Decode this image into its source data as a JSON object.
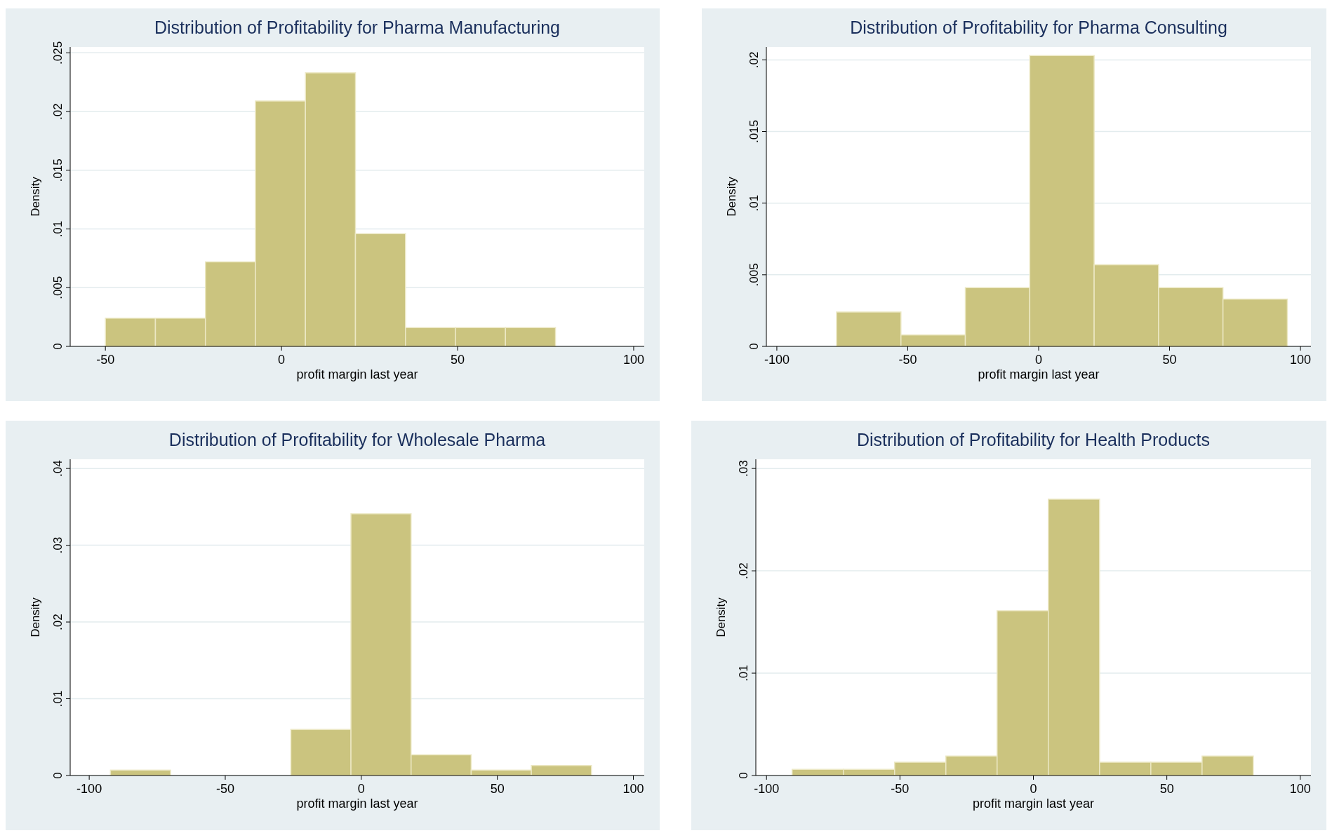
{
  "chart_data": [
    {
      "type": "histogram",
      "title": "Distribution of Profitability for Pharma Manufacturing",
      "xlabel": "profit margin  last year",
      "ylabel": "Density",
      "color": "#cbc47f",
      "grid": "y",
      "bins": [
        -50,
        -35.8,
        -21.6,
        -7.4,
        6.8,
        21,
        35.2,
        49.4,
        63.6,
        77.8
      ],
      "values": [
        0.0024,
        0.0024,
        0.0072,
        0.0209,
        0.0233,
        0.0096,
        0.0016,
        0.0016,
        0.0016
      ],
      "xlim": [
        -60,
        103
      ],
      "xticks": [
        -50,
        0,
        50,
        100
      ],
      "ylim": [
        0,
        0.0255
      ],
      "yticks": [
        {
          "value": 0,
          "label": "0"
        },
        {
          "value": 0.005,
          "label": ".005"
        },
        {
          "value": 0.01,
          "label": ".01"
        },
        {
          "value": 0.015,
          "label": ".015"
        },
        {
          "value": 0.02,
          "label": ".02"
        },
        {
          "value": 0.025,
          "label": ".025"
        }
      ]
    },
    {
      "type": "histogram",
      "title": "Distribution of Profitability for Pharma Consulting",
      "xlabel": "profit margin  last year",
      "ylabel": "Density",
      "color": "#cbc47f",
      "grid": "y",
      "bins": [
        -77.2,
        -52.6,
        -28,
        -3.4,
        21.2,
        45.8,
        70.4,
        95
      ],
      "values": [
        0.0024,
        0.0008,
        0.0041,
        0.0203,
        0.0057,
        0.0041,
        0.0033
      ],
      "xlim": [
        -104,
        104
      ],
      "xticks": [
        -100,
        -50,
        0,
        50,
        100
      ],
      "ylim": [
        0,
        0.0209
      ],
      "yticks": [
        {
          "value": 0,
          "label": "0"
        },
        {
          "value": 0.005,
          "label": ".005"
        },
        {
          "value": 0.01,
          "label": ".01"
        },
        {
          "value": 0.015,
          "label": ".015"
        },
        {
          "value": 0.02,
          "label": ".02"
        }
      ]
    },
    {
      "type": "histogram",
      "title": "Distribution of Profitability for Wholesale Pharma",
      "xlabel": "profit margin  last year",
      "ylabel": "Density",
      "color": "#cbc47f",
      "grid": "y",
      "bins": [
        -92.2,
        -70.1,
        -48,
        -25.9,
        -3.8,
        18.3,
        40.4,
        62.5,
        84.6
      ],
      "values": [
        0.0007,
        0,
        0,
        0.006,
        0.0341,
        0.0027,
        0.0007,
        0.0013
      ],
      "xlim": [
        -107,
        104
      ],
      "xticks": [
        -100,
        -50,
        0,
        50,
        100
      ],
      "ylim": [
        0,
        0.0412
      ],
      "yticks": [
        {
          "value": 0,
          "label": "0"
        },
        {
          "value": 0.01,
          "label": ".01"
        },
        {
          "value": 0.02,
          "label": ".02"
        },
        {
          "value": 0.03,
          "label": ".03"
        },
        {
          "value": 0.04,
          "label": ".04"
        }
      ]
    },
    {
      "type": "histogram",
      "title": "Distribution of Profitability for Health Products",
      "xlabel": "profit margin  last year",
      "ylabel": "Density",
      "color": "#cbc47f",
      "grid": "y",
      "bins": [
        -90.4,
        -71.2,
        -52,
        -32.8,
        -13.6,
        5.6,
        24.8,
        44,
        63.2,
        82.4
      ],
      "values": [
        0.0006,
        0.0006,
        0.0013,
        0.0019,
        0.0161,
        0.027,
        0.0013,
        0.0013,
        0.0019
      ],
      "xlim": [
        -104,
        104
      ],
      "xticks": [
        -100,
        -50,
        0,
        50,
        100
      ],
      "ylim": [
        0,
        0.0309
      ],
      "yticks": [
        {
          "value": 0,
          "label": "0"
        },
        {
          "value": 0.01,
          "label": ".01"
        },
        {
          "value": 0.02,
          "label": ".02"
        },
        {
          "value": 0.03,
          "label": ".03"
        }
      ]
    }
  ]
}
